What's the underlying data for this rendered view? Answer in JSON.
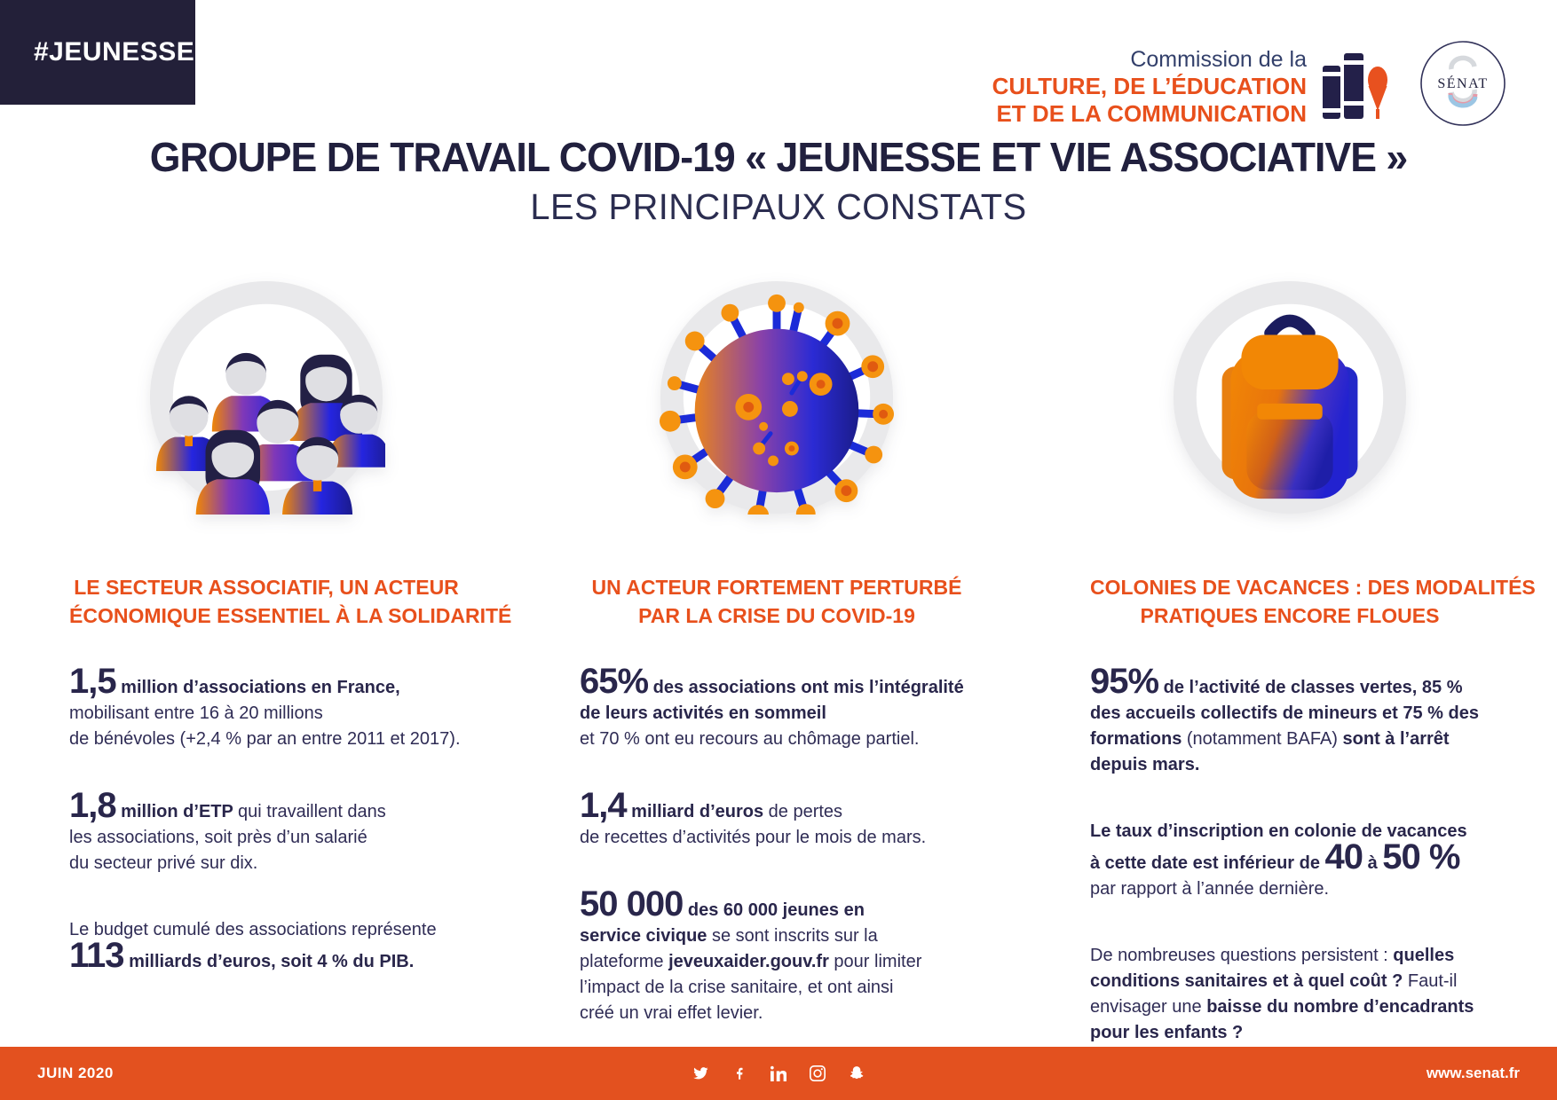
{
  "colors": {
    "navy": "#232039",
    "text_navy": "#29264B",
    "accent_orange": "#E8501C",
    "footer_orange": "#E3511F",
    "ring_gray": "#E9E9EB"
  },
  "header": {
    "hashtag": "#JEUNESSE",
    "commission_line1": "Commission de la",
    "commission_line2": "CULTURE, DE L’ÉDUCATION",
    "commission_line3": "ET DE LA COMMUNICATION",
    "senat_logo": "SÉNAT"
  },
  "title": "GROUPE DE TRAVAIL COVID-19 « JEUNESSE ET VIE ASSOCIATIVE »",
  "subtitle": "LES PRINCIPAUX CONSTATS",
  "columns": [
    {
      "icon": "group-of-people",
      "heading": "LE SECTEUR ASSOCIATIF, UN ACTEUR\nÉCONOMIQUE ESSENTIEL À LA SOLIDARITÉ",
      "paragraphs": [
        [
          {
            "t": "1,5",
            "s": "n"
          },
          {
            "t": " million d’associations en France,",
            "s": "b"
          },
          {
            "t": "\nmobilisant entre 16 à 20 millions\nde bénévoles (+2,4 % par an entre 2011 et 2017).",
            "s": "r"
          }
        ],
        [
          {
            "t": "1,8",
            "s": "n"
          },
          {
            "t": " million d’ETP ",
            "s": "b"
          },
          {
            "t": "qui travaillent dans\nles associations, soit près d’un salarié\ndu secteur privé sur dix.",
            "s": "r"
          }
        ],
        [
          {
            "t": "Le budget cumulé des associations représente\n",
            "s": "r"
          },
          {
            "t": "113",
            "s": "n"
          },
          {
            "t": " milliards d’euros, soit 4 % du PIB.",
            "s": "b"
          }
        ]
      ]
    },
    {
      "icon": "coronavirus",
      "heading": "UN ACTEUR FORTEMENT PERTURBÉ\nPAR LA CRISE DU COVID-19",
      "paragraphs": [
        [
          {
            "t": "65%",
            "s": "n"
          },
          {
            "t": " des associations ont mis l’intégralité\nde leurs activités en sommeil",
            "s": "b"
          },
          {
            "t": "\net 70 % ont eu recours au chômage partiel.",
            "s": "r"
          }
        ],
        [
          {
            "t": "1,4",
            "s": "n"
          },
          {
            "t": " milliard d’euros ",
            "s": "b"
          },
          {
            "t": "de pertes\nde recettes d’activités pour le mois de mars.",
            "s": "r"
          }
        ],
        [
          {
            "t": "50 000",
            "s": "n"
          },
          {
            "t": " des 60 000 jeunes en\nservice civique",
            "s": "b"
          },
          {
            "t": " se sont inscrits sur la\nplateforme ",
            "s": "r"
          },
          {
            "t": "jeveuxaider.gouv.fr",
            "s": "b"
          },
          {
            "t": " pour limiter\nl’impact de la crise sanitaire, et ont ainsi\ncréé un vrai effet levier.",
            "s": "r"
          }
        ]
      ]
    },
    {
      "icon": "backpack",
      "heading": "COLONIES DE VACANCES : DES MODALITÉS\nPRATIQUES ENCORE FLOUES",
      "paragraphs": [
        [
          {
            "t": "95%",
            "s": "n"
          },
          {
            "t": " de l’activité de classes vertes, 85 %\ndes accueils collectifs de mineurs et 75 % des\nformations",
            "s": "b"
          },
          {
            "t": " (notamment BAFA) ",
            "s": "r"
          },
          {
            "t": "sont à l’arrêt\ndepuis mars.",
            "s": "b"
          }
        ],
        [
          {
            "t": "Le taux d’inscription en colonie de vacances\nà cette date est inférieur de ",
            "s": "b"
          },
          {
            "t": "40",
            "s": "n"
          },
          {
            "t": " à ",
            "s": "b"
          },
          {
            "t": "50 %",
            "s": "n"
          },
          {
            "t": "\npar rapport à l’année dernière.",
            "s": "r"
          }
        ],
        [
          {
            "t": "De nombreuses questions persistent : ",
            "s": "r"
          },
          {
            "t": "quelles\nconditions sanitaires et à quel coût ?",
            "s": "b"
          },
          {
            "t": " Faut-il\nenvisager une ",
            "s": "r"
          },
          {
            "t": "baisse du nombre d’encadrants\npour les enfants ?",
            "s": "b"
          }
        ]
      ]
    }
  ],
  "footer": {
    "date": "JUIN 2020",
    "website": "www.senat.fr",
    "social_icons": [
      "twitter",
      "facebook",
      "linkedin",
      "instagram",
      "snapchat"
    ]
  }
}
